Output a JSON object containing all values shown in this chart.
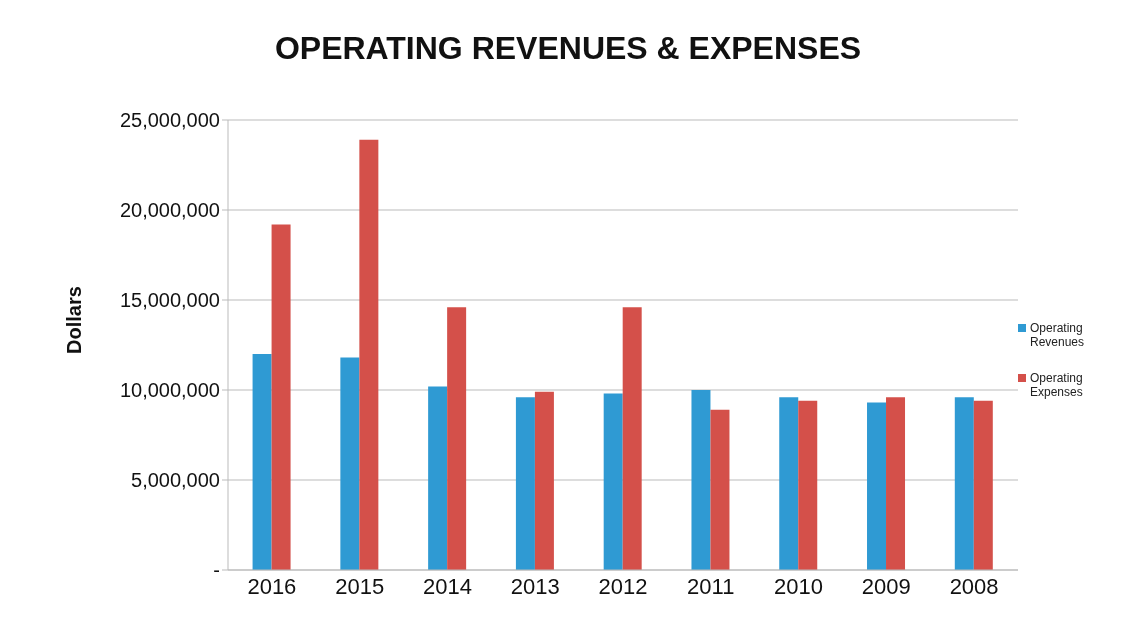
{
  "chart_data": {
    "type": "bar",
    "title": "OPERATING REVENUES & EXPENSES",
    "ylabel": "Dollars",
    "categories": [
      "2016",
      "2015",
      "2014",
      "2013",
      "2012",
      "2011",
      "2010",
      "2009",
      "2008"
    ],
    "series": [
      {
        "name": "Operating Revenues",
        "color": "#2f9ad3",
        "values": [
          12000000,
          11800000,
          10200000,
          9600000,
          9800000,
          10000000,
          9600000,
          9300000,
          9600000
        ]
      },
      {
        "name": "Operating Expenses",
        "color": "#d4504a",
        "values": [
          19200000,
          23900000,
          14600000,
          9900000,
          14600000,
          8900000,
          9400000,
          9600000,
          9400000
        ]
      }
    ],
    "ylim": [
      0,
      25000000
    ],
    "yticks": [
      {
        "value": 0,
        "label": "-"
      },
      {
        "value": 5000000,
        "label": "5,000,000"
      },
      {
        "value": 10000000,
        "label": "10,000,000"
      },
      {
        "value": 15000000,
        "label": "15,000,000"
      },
      {
        "value": 20000000,
        "label": "20,000,000"
      },
      {
        "value": 25000000,
        "label": "25,000,000"
      }
    ],
    "grid": "y",
    "legend": "right"
  }
}
